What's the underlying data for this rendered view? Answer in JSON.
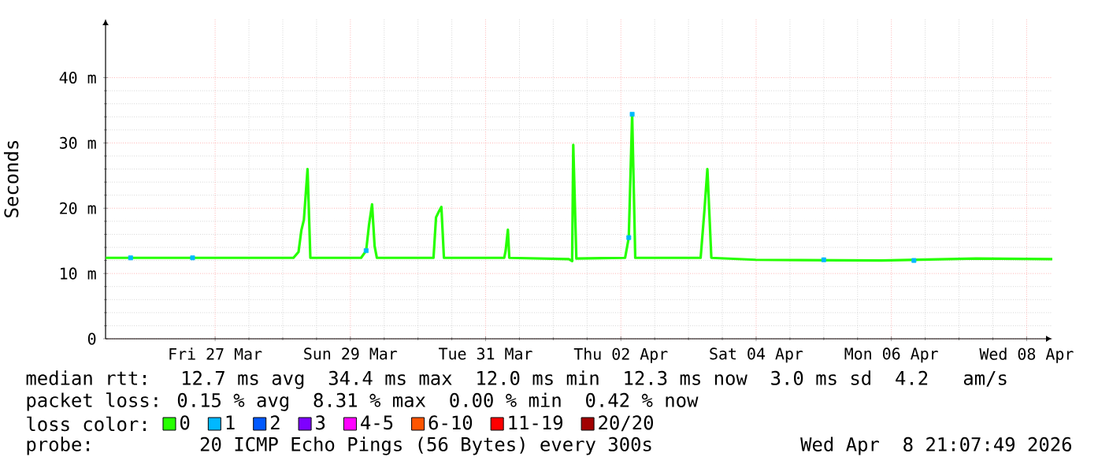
{
  "chart_data": {
    "type": "line",
    "ylabel": "Seconds",
    "legend_title": "loss color:",
    "xlim": [
      "2026-03-25T21:07",
      "2026-04-08T21:07"
    ],
    "xticks": [
      {
        "value": "2026-03-27T12:00",
        "label": "Fri 27 Mar"
      },
      {
        "value": "2026-03-29T12:00",
        "label": "Sun 29 Mar"
      },
      {
        "value": "2026-03-31T12:00",
        "label": "Tue 31 Mar"
      },
      {
        "value": "2026-04-02T12:00",
        "label": "Thu 02 Apr"
      },
      {
        "value": "2026-04-04T12:00",
        "label": "Sat 04 Apr"
      },
      {
        "value": "2026-04-06T12:00",
        "label": "Mon 06 Apr"
      },
      {
        "value": "2026-04-08T12:00",
        "label": "Wed 08 Apr"
      }
    ],
    "ylim": [
      0,
      49
    ],
    "yticks": [
      0,
      {
        "value": 10,
        "label": "10 m"
      },
      {
        "value": 20,
        "label": "20 m"
      },
      {
        "value": 30,
        "label": "30 m"
      },
      {
        "value": 40,
        "label": "40 m"
      }
    ],
    "grid": true,
    "legend": "bottom",
    "series": [
      {
        "name": "0",
        "color": "#26ff00",
        "x": [
          "2026-03-25T21:07",
          "2026-03-28T15:48",
          "2026-03-28T17:36",
          "2026-03-28T18:36",
          "2026-03-28T19:30",
          "2026-03-28T20:48",
          "2026-03-28T21:48",
          "2026-03-29T15:48",
          "2026-03-29T17:36",
          "2026-03-29T18:36",
          "2026-03-29T19:42",
          "2026-03-29T20:36",
          "2026-03-29T21:24",
          "2026-03-30T17:30",
          "2026-03-30T18:24",
          "2026-03-30T19:18",
          "2026-03-30T20:18",
          "2026-03-30T21:12",
          "2026-03-31T18:36",
          "2026-03-31T19:06",
          "2026-03-31T19:54",
          "2026-03-31T20:24",
          "2026-04-01T17:30",
          "2026-04-01T18:42",
          "2026-04-01T19:06",
          "2026-04-01T20:12",
          "2026-04-02T13:30",
          "2026-04-02T14:48",
          "2026-04-02T16:00",
          "2026-04-02T17:06",
          "2026-04-03T16:18",
          "2026-04-03T17:36",
          "2026-04-03T18:42",
          "2026-04-03T20:06",
          "2026-04-04T11:54",
          "2026-04-06T08:30",
          "2026-04-07T18:00",
          "2026-04-08T21:07"
        ],
        "values": [
          12.4,
          12.4,
          13.3,
          16.6,
          18.2,
          26.0,
          12.4,
          12.4,
          13.5,
          17.4,
          20.6,
          14.2,
          12.4,
          12.4,
          18.6,
          19.4,
          20.2,
          12.4,
          12.4,
          13.5,
          16.7,
          12.4,
          12.2,
          11.9,
          29.7,
          12.3,
          12.4,
          15.5,
          34.4,
          12.4,
          12.4,
          19.4,
          26.0,
          12.4,
          12.1,
          12.0,
          12.3,
          12.2
        ]
      },
      {
        "name": "1",
        "color": "#00b8ff",
        "type": "scatter",
        "marker": "square",
        "x": [
          "2026-03-26T06:00",
          "2026-03-27T04:00",
          "2026-03-29T17:36",
          "2026-04-02T14:48",
          "2026-04-02T16:00",
          "2026-04-05T12:00",
          "2026-04-06T20:00"
        ],
        "values": [
          12.4,
          12.4,
          13.5,
          15.5,
          34.4,
          12.1,
          12.0
        ]
      },
      {
        "name": "2",
        "color": "#0059ff",
        "type": "scatter"
      },
      {
        "name": "3",
        "color": "#7e00ff",
        "type": "scatter"
      },
      {
        "name": "4-5",
        "color": "#ff00ff",
        "type": "scatter"
      },
      {
        "name": "6-10",
        "color": "#ff5500",
        "type": "scatter"
      },
      {
        "name": "11-19",
        "color": "#ff0000",
        "type": "scatter"
      },
      {
        "name": "20/20",
        "color": "#a10000",
        "type": "scatter"
      }
    ],
    "annotations": [
      "median rtt:  12.7 ms avg  34.4 ms max  12.0 ms min  12.3 ms now  3.0 ms sd  4.2   am/s",
      "packet loss: 0.15 % avg  8.31 % max  0.00 % min  0.42 % now",
      "probe:       20 ICMP Echo Pings (56 Bytes) every 300s",
      "Wed Apr  8 21:07:49 2026"
    ]
  }
}
